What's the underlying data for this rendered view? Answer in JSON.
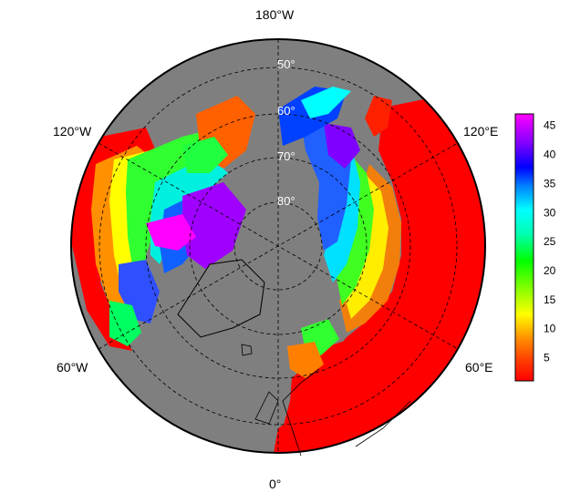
{
  "map": {
    "projection": "north-polar-stereographic",
    "background_color": "#7f7f7f",
    "land_outline_color": "#000000",
    "graticule_style": "dashed",
    "longitude_labels": {
      "top": "180°W",
      "top_left": "120°W",
      "top_right": "120°E",
      "bottom_left": "60°W",
      "bottom_right": "60°E",
      "bottom": "0°"
    },
    "latitude_labels": [
      "50°",
      "60°",
      "70°",
      "80°"
    ]
  },
  "chart_data": {
    "type": "heatmap",
    "title": "",
    "colorbar": {
      "min": 1,
      "max": 47,
      "ticks": [
        "5",
        "10",
        "15",
        "20",
        "25",
        "30",
        "35",
        "40",
        "45"
      ],
      "colors": [
        "#ff0000",
        "#ff8000",
        "#ffff00",
        "#80ff00",
        "#00ff00",
        "#00ff80",
        "#00ffff",
        "#0080ff",
        "#0000ff",
        "#8000ff",
        "#ff00ff"
      ]
    }
  }
}
